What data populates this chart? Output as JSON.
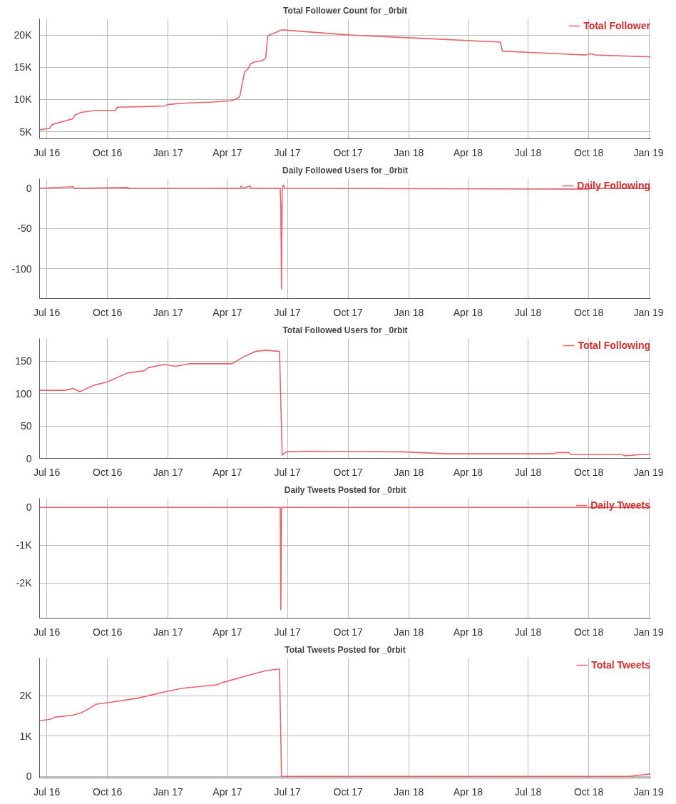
{
  "chart_data": [
    {
      "type": "line",
      "title": "Total Follower Count for _0rbit",
      "grid": true,
      "legend": "top right",
      "xlim": [
        "2016-06-20",
        "2019-01-03"
      ],
      "xticks": [
        {
          "value": "2016-07-01",
          "label": "Jul 16"
        },
        {
          "value": "2016-10-01",
          "label": "Oct 16"
        },
        {
          "value": "2017-01-01",
          "label": "Jan 17"
        },
        {
          "value": "2017-04-01",
          "label": "Apr 17"
        },
        {
          "value": "2017-07-01",
          "label": "Jul 17"
        },
        {
          "value": "2017-10-01",
          "label": "Oct 17"
        },
        {
          "value": "2018-01-01",
          "label": "Jan 18"
        },
        {
          "value": "2018-04-01",
          "label": "Apr 18"
        },
        {
          "value": "2018-07-01",
          "label": "Jul 18"
        },
        {
          "value": "2018-10-01",
          "label": "Oct 18"
        },
        {
          "value": "2019-01-01",
          "label": "Jan 19"
        }
      ],
      "ylim": [
        3900,
        22500
      ],
      "yticks": [
        {
          "value": 5000,
          "label": "5K"
        },
        {
          "value": 10000,
          "label": "10K"
        },
        {
          "value": 15000,
          "label": "15K"
        },
        {
          "value": 20000,
          "label": "20K"
        }
      ],
      "series": [
        {
          "name": "Total Follower",
          "color": "#e8646a",
          "x": [
            "2016-06-20",
            "2016-07-05",
            "2016-07-09",
            "2016-08-09",
            "2016-08-13",
            "2016-08-22",
            "2016-09-13",
            "2016-10-13",
            "2016-10-16",
            "2016-11-27",
            "2016-12-28",
            "2016-12-31",
            "2017-01-21",
            "2017-03-10",
            "2017-04-07",
            "2017-04-17",
            "2017-04-20",
            "2017-04-27",
            "2017-05-02",
            "2017-05-06",
            "2017-05-11",
            "2017-05-23",
            "2017-05-29",
            "2017-06-01",
            "2017-06-04",
            "2017-06-23",
            "2017-10-04",
            "2018-01-18",
            "2018-05-20",
            "2018-05-23",
            "2018-08-15",
            "2018-09-26",
            "2018-10-04",
            "2018-10-11",
            "2019-01-03"
          ],
          "values": [
            5300,
            5500,
            6100,
            7000,
            7600,
            8000,
            8300,
            8300,
            8800,
            8900,
            9000,
            9200,
            9400,
            9600,
            9800,
            10200,
            10600,
            14300,
            14700,
            15500,
            15800,
            16000,
            16400,
            19800,
            20000,
            20800,
            20000,
            19500,
            18900,
            17500,
            17100,
            16900,
            17100,
            16900,
            16600
          ]
        }
      ]
    },
    {
      "type": "line",
      "title": "Daily Followed Users for _0rbit",
      "grid": true,
      "legend": "top right",
      "xlim": [
        "2016-06-20",
        "2019-01-03"
      ],
      "xticks": [
        {
          "value": "2016-07-01",
          "label": "Jul 16"
        },
        {
          "value": "2016-10-01",
          "label": "Oct 16"
        },
        {
          "value": "2017-01-01",
          "label": "Jan 17"
        },
        {
          "value": "2017-04-01",
          "label": "Apr 17"
        },
        {
          "value": "2017-07-01",
          "label": "Jul 17"
        },
        {
          "value": "2017-10-01",
          "label": "Oct 17"
        },
        {
          "value": "2018-01-01",
          "label": "Jan 18"
        },
        {
          "value": "2018-04-01",
          "label": "Apr 18"
        },
        {
          "value": "2018-07-01",
          "label": "Jul 18"
        },
        {
          "value": "2018-10-01",
          "label": "Oct 18"
        },
        {
          "value": "2019-01-01",
          "label": "Jan 19"
        }
      ],
      "ylim": [
        -137,
        12
      ],
      "yticks": [
        -100,
        -50,
        0
      ],
      "series": [
        {
          "name": "Daily Following",
          "color": "#e8646a",
          "x": [
            "2016-06-20",
            "2016-08-10",
            "2016-08-12",
            "2016-11-01",
            "2016-11-03",
            "2017-04-20",
            "2017-04-22",
            "2017-04-24",
            "2017-05-05",
            "2017-05-07",
            "2017-06-20",
            "2017-06-21",
            "2017-06-22",
            "2017-06-23",
            "2017-06-25",
            "2017-06-27",
            "2018-10-01",
            "2018-10-03",
            "2019-01-03"
          ],
          "values": [
            0,
            2,
            0,
            1,
            0,
            0,
            3,
            0,
            3,
            0,
            0,
            -25,
            -125,
            0,
            4,
            0,
            -1,
            0,
            0
          ]
        }
      ]
    },
    {
      "type": "line",
      "title": "Total Followed Users for _0rbit",
      "grid": true,
      "legend": "top right",
      "xlim": [
        "2016-06-20",
        "2019-01-03"
      ],
      "xticks": [
        {
          "value": "2016-07-01",
          "label": "Jul 16"
        },
        {
          "value": "2016-10-01",
          "label": "Oct 16"
        },
        {
          "value": "2017-01-01",
          "label": "Jan 17"
        },
        {
          "value": "2017-04-01",
          "label": "Apr 17"
        },
        {
          "value": "2017-07-01",
          "label": "Jul 17"
        },
        {
          "value": "2017-10-01",
          "label": "Oct 17"
        },
        {
          "value": "2018-01-01",
          "label": "Jan 18"
        },
        {
          "value": "2018-04-01",
          "label": "Apr 18"
        },
        {
          "value": "2018-07-01",
          "label": "Jul 18"
        },
        {
          "value": "2018-10-01",
          "label": "Oct 18"
        },
        {
          "value": "2019-01-01",
          "label": "Jan 19"
        }
      ],
      "ylim": [
        0,
        185
      ],
      "yticks": [
        0,
        50,
        100,
        150
      ],
      "series": [
        {
          "name": "Total Following",
          "color": "#e8646a",
          "x": [
            "2016-06-20",
            "2016-07-28",
            "2016-08-10",
            "2016-08-20",
            "2016-09-11",
            "2016-10-01",
            "2016-11-01",
            "2016-11-25",
            "2016-12-02",
            "2016-12-27",
            "2017-01-12",
            "2017-02-01",
            "2017-04-08",
            "2017-04-26",
            "2017-05-13",
            "2017-05-29",
            "2017-06-19",
            "2017-06-23",
            "2017-06-29",
            "2017-07-26",
            "2017-12-22",
            "2018-03-01",
            "2018-08-10",
            "2018-08-13",
            "2018-09-01",
            "2018-09-04",
            "2018-11-20",
            "2018-11-25",
            "2018-12-22",
            "2019-01-03"
          ],
          "values": [
            105,
            105,
            108,
            103,
            113,
            118,
            132,
            135,
            140,
            145,
            142,
            146,
            146,
            157,
            165,
            167,
            165,
            5,
            10,
            11,
            10,
            7,
            7,
            9,
            9,
            6,
            6,
            4,
            6,
            6
          ]
        }
      ]
    },
    {
      "type": "line",
      "title": "Daily Tweets Posted for _0rbit",
      "grid": true,
      "legend": "top right",
      "xlim": [
        "2016-06-20",
        "2019-01-03"
      ],
      "xticks": [
        {
          "value": "2016-07-01",
          "label": "Jul 16"
        },
        {
          "value": "2016-10-01",
          "label": "Oct 16"
        },
        {
          "value": "2017-01-01",
          "label": "Jan 17"
        },
        {
          "value": "2017-04-01",
          "label": "Apr 17"
        },
        {
          "value": "2017-07-01",
          "label": "Jul 17"
        },
        {
          "value": "2017-10-01",
          "label": "Oct 17"
        },
        {
          "value": "2018-01-01",
          "label": "Jan 18"
        },
        {
          "value": "2018-04-01",
          "label": "Apr 18"
        },
        {
          "value": "2018-07-01",
          "label": "Jul 18"
        },
        {
          "value": "2018-10-01",
          "label": "Oct 18"
        },
        {
          "value": "2019-01-01",
          "label": "Jan 19"
        }
      ],
      "ylim": [
        -2930,
        240
      ],
      "yticks": [
        {
          "value": -2000,
          "label": "-2K"
        },
        {
          "value": -1000,
          "label": "-1K"
        },
        0
      ],
      "series": [
        {
          "name": "Daily Tweets",
          "color": "#e8646a",
          "x": [
            "2016-06-20",
            "2017-06-20",
            "2017-06-21",
            "2017-06-22",
            "2019-01-03"
          ],
          "values": [
            0,
            0,
            -2710,
            0,
            0
          ]
        }
      ]
    },
    {
      "type": "line",
      "title": "Total Tweets Posted for _0rbit",
      "grid": true,
      "legend": "top right",
      "xlim": [
        "2016-06-20",
        "2019-01-03"
      ],
      "xticks": [
        {
          "value": "2016-07-01",
          "label": "Jul 16"
        },
        {
          "value": "2016-10-01",
          "label": "Oct 16"
        },
        {
          "value": "2017-01-01",
          "label": "Jan 17"
        },
        {
          "value": "2017-04-01",
          "label": "Apr 17"
        },
        {
          "value": "2017-07-01",
          "label": "Jul 17"
        },
        {
          "value": "2017-10-01",
          "label": "Oct 17"
        },
        {
          "value": "2018-01-01",
          "label": "Jan 18"
        },
        {
          "value": "2018-04-01",
          "label": "Apr 18"
        },
        {
          "value": "2018-07-01",
          "label": "Jul 18"
        },
        {
          "value": "2018-10-01",
          "label": "Oct 18"
        },
        {
          "value": "2019-01-01",
          "label": "Jan 19"
        }
      ],
      "ylim": [
        -40,
        2940
      ],
      "yticks": [
        0,
        {
          "value": 1000,
          "label": "1K"
        },
        {
          "value": 2000,
          "label": "2K"
        }
      ],
      "series": [
        {
          "name": "Total Tweets",
          "color": "#e8646a",
          "x": [
            "2016-06-20",
            "2016-07-06",
            "2016-07-13",
            "2016-08-09",
            "2016-08-22",
            "2016-09-06",
            "2016-09-13",
            "2016-10-01",
            "2016-11-15",
            "2017-01-01",
            "2017-01-23",
            "2017-03-17",
            "2017-03-24",
            "2017-05-09",
            "2017-05-30",
            "2017-06-19",
            "2017-06-22",
            "2018-12-01",
            "2019-01-03"
          ],
          "values": [
            1380,
            1420,
            1470,
            1520,
            1580,
            1710,
            1790,
            1830,
            1940,
            2120,
            2190,
            2280,
            2330,
            2540,
            2630,
            2670,
            0,
            0,
            60
          ]
        }
      ]
    }
  ]
}
